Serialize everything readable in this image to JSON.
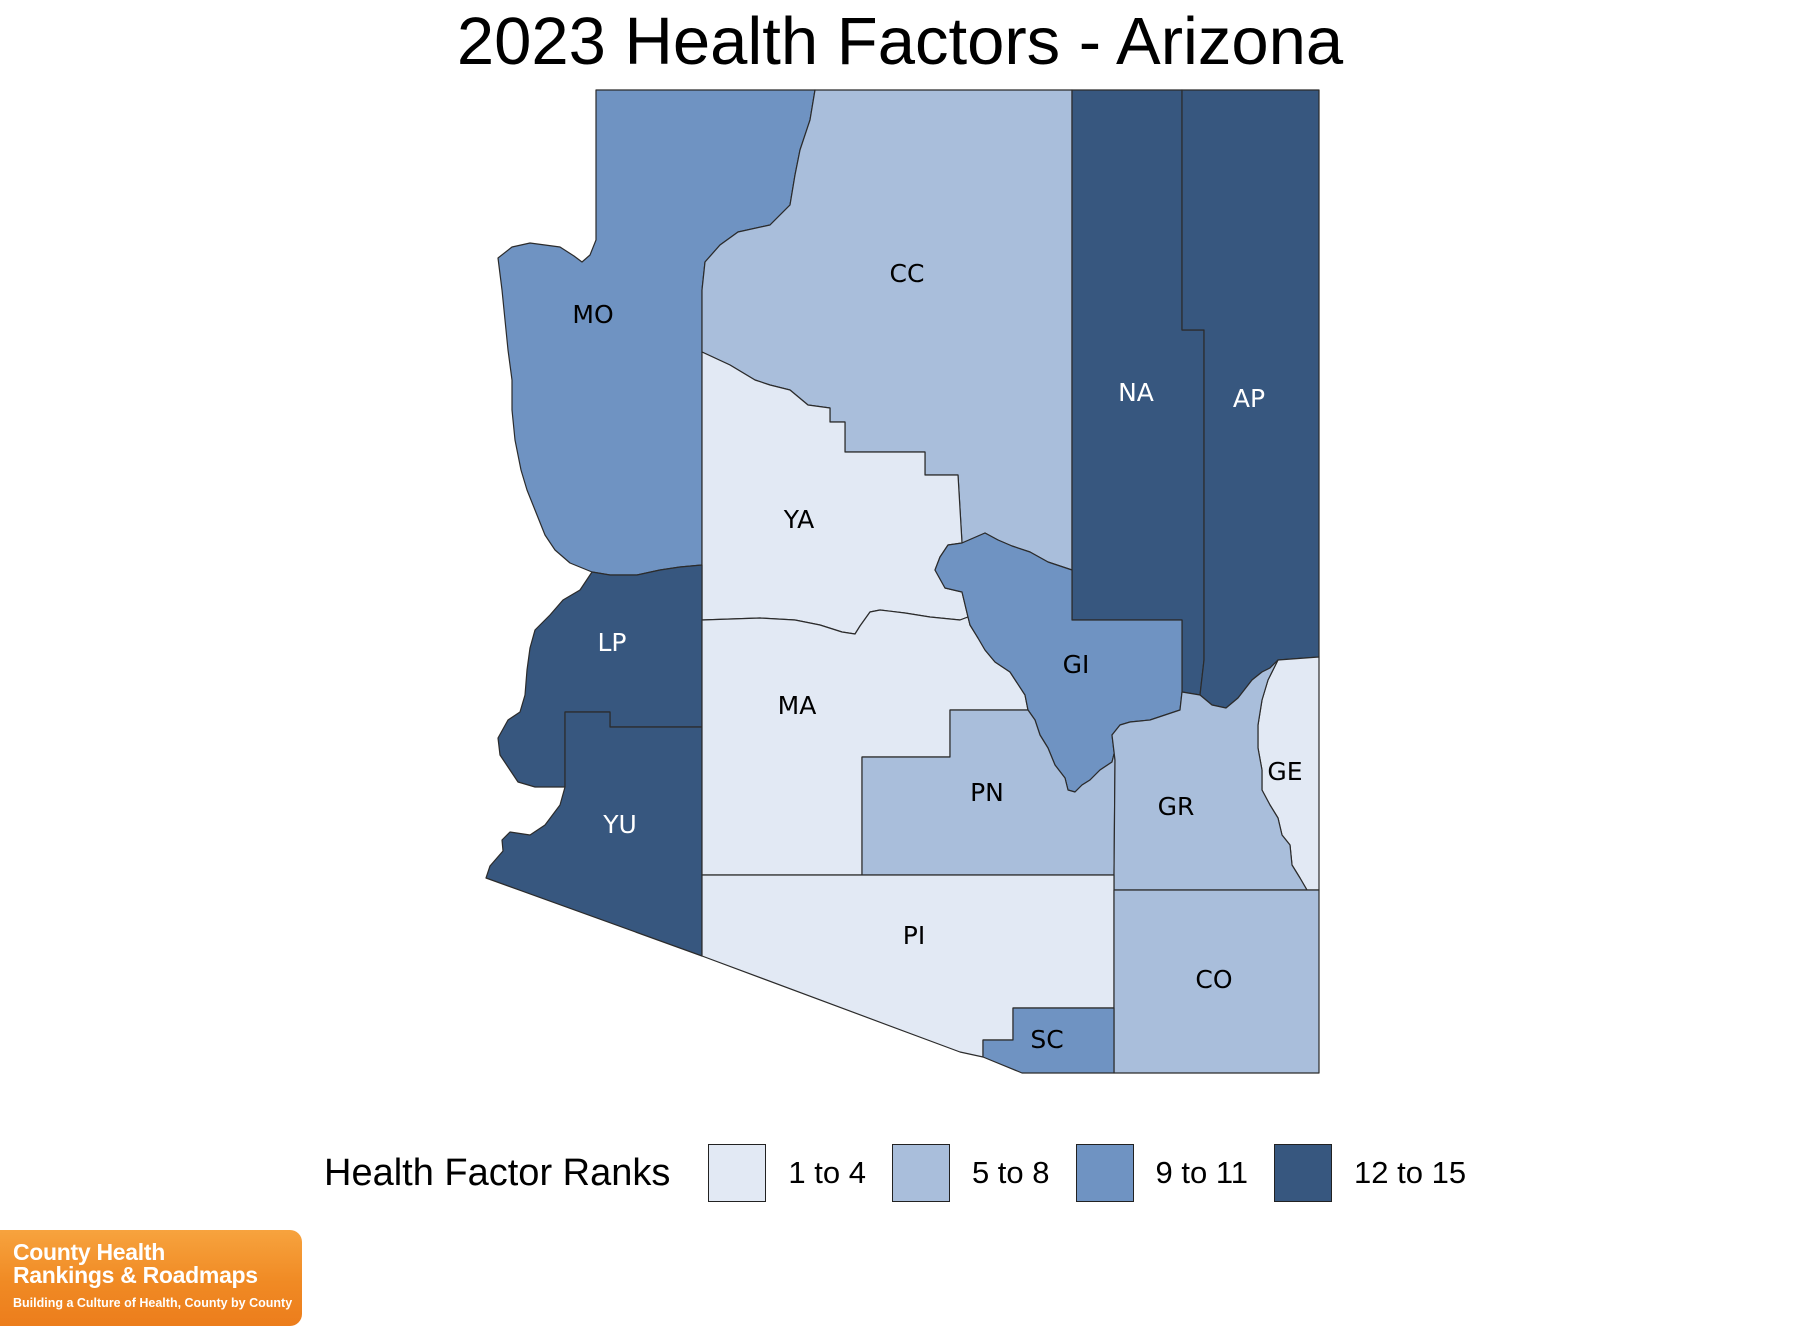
{
  "title": "2023 Health Factors - Arizona",
  "legend": {
    "title": "Health Factor Ranks",
    "items": [
      {
        "label": "1 to 4",
        "color": "#e2e9f4"
      },
      {
        "label": "5 to 8",
        "color": "#a9bedb"
      },
      {
        "label": "9 to 11",
        "color": "#6f93c2"
      },
      {
        "label": "12 to 15",
        "color": "#37577f"
      }
    ]
  },
  "counties": [
    {
      "id": "MO",
      "rank_group": "9 to 11"
    },
    {
      "id": "CC",
      "rank_group": "5 to 8"
    },
    {
      "id": "NA",
      "rank_group": "12 to 15"
    },
    {
      "id": "AP",
      "rank_group": "12 to 15"
    },
    {
      "id": "YA",
      "rank_group": "1 to 4"
    },
    {
      "id": "LP",
      "rank_group": "12 to 15"
    },
    {
      "id": "YU",
      "rank_group": "12 to 15"
    },
    {
      "id": "MA",
      "rank_group": "1 to 4"
    },
    {
      "id": "GI",
      "rank_group": "9 to 11"
    },
    {
      "id": "PN",
      "rank_group": "5 to 8"
    },
    {
      "id": "GE",
      "rank_group": "1 to 4"
    },
    {
      "id": "GR",
      "rank_group": "5 to 8"
    },
    {
      "id": "PI",
      "rank_group": "1 to 4"
    },
    {
      "id": "CO",
      "rank_group": "5 to 8"
    },
    {
      "id": "SC",
      "rank_group": "9 to 11"
    }
  ],
  "logo": {
    "line1": "County Health",
    "line2": "Rankings & Roadmaps",
    "tagline": "Building a Culture of Health, County by County"
  }
}
